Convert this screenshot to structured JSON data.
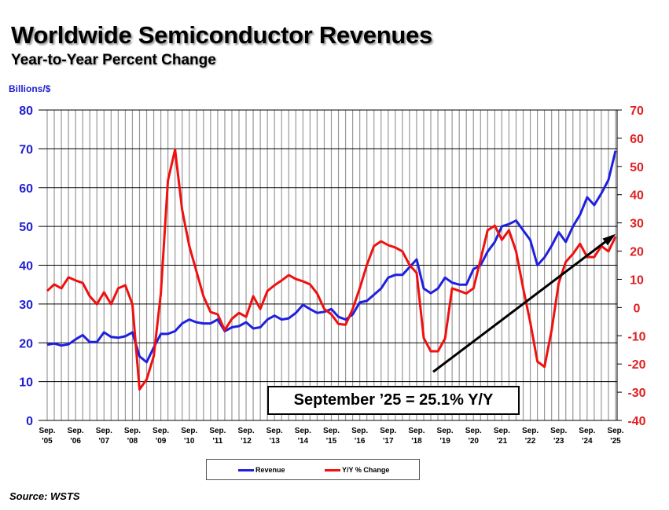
{
  "title": "Worldwide Semiconductor Revenues",
  "subtitle": "Year-to-Year Percent Change",
  "source": "Source: WSTS",
  "annotation": "September ’25 = 25.1% Y/Y",
  "colors": {
    "revenue": "#1f1fe0",
    "yoy": "#f01010",
    "left_axis": "#1f1fd0",
    "right_axis": "#e02020"
  },
  "chart_data": {
    "type": "line",
    "title": "Worldwide Semiconductor Revenues",
    "subtitle": "Year-to-Year Percent Change",
    "ylabel": "Billions/$",
    "ylim": [
      0,
      80
    ],
    "y2lim": [
      -40,
      70
    ],
    "yticks": [
      "0",
      "10",
      "20",
      "30",
      "40",
      "50",
      "60",
      "70",
      "80"
    ],
    "y2ticks": [
      "-40",
      "-30",
      "-20",
      "-10",
      "0",
      "10",
      "20",
      "30",
      "40",
      "50",
      "60",
      "70"
    ],
    "xticks": [
      {
        "m": "Sep.",
        "y": "'05"
      },
      {
        "m": "Sep.",
        "y": "'06"
      },
      {
        "m": "Sep.",
        "y": "'07"
      },
      {
        "m": "Sep.",
        "y": "'08"
      },
      {
        "m": "Sep.",
        "y": "'09"
      },
      {
        "m": "Sep.",
        "y": "'10"
      },
      {
        "m": "Sep.",
        "y": "'11"
      },
      {
        "m": "Sep.",
        "y": "'12"
      },
      {
        "m": "Sep.",
        "y": "'13"
      },
      {
        "m": "Sep.",
        "y": "'14"
      },
      {
        "m": "Sep.",
        "y": "'15"
      },
      {
        "m": "Sep.",
        "y": "'16"
      },
      {
        "m": "Sep.",
        "y": "'17"
      },
      {
        "m": "Sep.",
        "y": "'18"
      },
      {
        "m": "Sep.",
        "y": "'19"
      },
      {
        "m": "Sep.",
        "y": "'20"
      },
      {
        "m": "Sep.",
        "y": "'21"
      },
      {
        "m": "Sep.",
        "y": "'22"
      },
      {
        "m": "Sep.",
        "y": "'23"
      },
      {
        "m": "Sep.",
        "y": "'24"
      },
      {
        "m": "Sep.",
        "y": "'25"
      }
    ],
    "grid": true,
    "legend_placement": "bottom",
    "x": [
      "2005-09",
      "2005-12",
      "2006-03",
      "2006-06",
      "2006-09",
      "2006-12",
      "2007-03",
      "2007-06",
      "2007-09",
      "2007-12",
      "2008-03",
      "2008-06",
      "2008-09",
      "2008-12",
      "2009-03",
      "2009-06",
      "2009-09",
      "2009-12",
      "2010-03",
      "2010-06",
      "2010-09",
      "2010-12",
      "2011-03",
      "2011-06",
      "2011-09",
      "2011-12",
      "2012-03",
      "2012-06",
      "2012-09",
      "2012-12",
      "2013-03",
      "2013-06",
      "2013-09",
      "2013-12",
      "2014-03",
      "2014-06",
      "2014-09",
      "2014-12",
      "2015-03",
      "2015-06",
      "2015-09",
      "2015-12",
      "2016-03",
      "2016-06",
      "2016-09",
      "2016-12",
      "2017-03",
      "2017-06",
      "2017-09",
      "2017-12",
      "2018-03",
      "2018-06",
      "2018-09",
      "2018-12",
      "2019-03",
      "2019-06",
      "2019-09",
      "2019-12",
      "2020-03",
      "2020-06",
      "2020-09",
      "2020-12",
      "2021-03",
      "2021-06",
      "2021-09",
      "2021-12",
      "2022-03",
      "2022-06",
      "2022-09",
      "2022-12",
      "2023-03",
      "2023-06",
      "2023-09",
      "2023-12",
      "2024-03",
      "2024-06",
      "2024-09",
      "2024-12",
      "2025-03",
      "2025-06",
      "2025-09"
    ],
    "series": [
      {
        "name": "Revenue",
        "axis": "left",
        "color": "#1f1fe0",
        "values": [
          19.5,
          19.8,
          19.3,
          19.6,
          20.9,
          22.0,
          20.2,
          20.2,
          22.7,
          21.5,
          21.3,
          21.7,
          22.7,
          16.5,
          15.0,
          18.8,
          22.3,
          22.3,
          23.0,
          25.0,
          26.0,
          25.3,
          25.0,
          25.0,
          26.0,
          23.0,
          24.0,
          24.3,
          25.3,
          23.7,
          24.0,
          26.0,
          27.0,
          26.0,
          26.3,
          27.7,
          29.8,
          28.7,
          27.7,
          28.0,
          28.7,
          26.7,
          26.0,
          27.3,
          30.4,
          30.8,
          32.4,
          34.0,
          36.8,
          37.5,
          37.5,
          39.5,
          41.5,
          34.0,
          32.8,
          34.0,
          36.8,
          35.5,
          35.0,
          35.0,
          39.0,
          40.0,
          43.5,
          46.0,
          50.0,
          50.6,
          51.5,
          49.0,
          46.5,
          40.0,
          42.0,
          45.0,
          48.5,
          46.0,
          50.0,
          53.0,
          57.5,
          55.5,
          58.5,
          62.0,
          69.5
        ]
      },
      {
        "name": "Y/Y % Change",
        "axis": "right",
        "color": "#f01010",
        "values": [
          5.9,
          8.2,
          6.8,
          10.7,
          9.6,
          8.7,
          4.0,
          1.2,
          5.4,
          1.2,
          6.8,
          7.9,
          1.2,
          -29.0,
          -25.5,
          -17.2,
          5.0,
          45.0,
          56.0,
          34.6,
          21.8,
          12.9,
          4.0,
          -1.6,
          -2.4,
          -8.0,
          -4.0,
          -1.9,
          -3.3,
          4.0,
          -0.5,
          5.9,
          7.9,
          9.6,
          11.5,
          10.1,
          9.3,
          8.2,
          5.0,
          -0.5,
          -2.4,
          -5.8,
          -6.1,
          -0.5,
          6.8,
          15.1,
          21.8,
          23.5,
          22.1,
          21.3,
          19.9,
          15.1,
          12.3,
          -10.8,
          -15.5,
          -15.5,
          -11.0,
          6.8,
          5.9,
          5.0,
          6.8,
          17.0,
          27.4,
          29.0,
          24.0,
          27.4,
          19.9,
          6.8,
          -5.2,
          -19.1,
          -21.0,
          -8.0,
          8.7,
          16.2,
          19.0,
          22.6,
          17.9,
          17.9,
          21.8,
          19.9,
          25.1
        ]
      }
    ],
    "annotations": [
      {
        "type": "arrow",
        "from": [
          "2019-04",
          -22.8
        ],
        "to": [
          "2025-08",
          25.4
        ],
        "axis": "right"
      },
      {
        "type": "text",
        "text": "September ’25 = 25.1% Y/Y"
      }
    ]
  }
}
